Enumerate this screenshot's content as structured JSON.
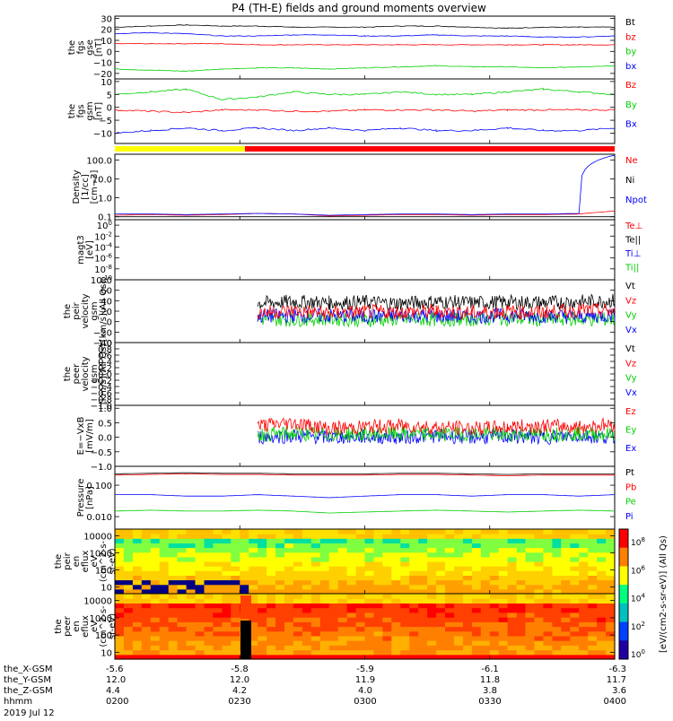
{
  "title": "P4 (TH-E) fields and ground moments overview",
  "date_label": "2019 Jul 12",
  "orbit_rows": [
    {
      "label": "the_X-GSM",
      "values": [
        "-5.6",
        "-5.8",
        "-5.9",
        "-6.1",
        "-6.3"
      ]
    },
    {
      "label": "the_Y-GSM",
      "values": [
        "12.0",
        "12.0",
        "11.9",
        "11.8",
        "11.7"
      ]
    },
    {
      "label": "the_Z-GSM",
      "values": [
        "4.4",
        "4.2",
        "4.0",
        "3.8",
        "3.6"
      ]
    },
    {
      "label": "hhmm",
      "values": [
        "0200",
        "0230",
        "0300",
        "0330",
        "0400"
      ]
    }
  ],
  "colorbar": {
    "label": "[eV/(cm2-s-sr-eV)] (All Qs)",
    "ticks": [
      "10^8",
      "10^6",
      "10^4",
      "10^2",
      "10^0"
    ],
    "colors": [
      "#ff0000",
      "#ff8000",
      "#ffff00",
      "#00ff80",
      "#00c0c0",
      "#0040ff",
      "#2000a0"
    ]
  },
  "colors": {
    "black": "#000000",
    "red": "#ff0000",
    "green": "#00d000",
    "blue": "#0000ff",
    "yellow": "#ffff00"
  },
  "chart_data": [
    {
      "type": "line",
      "ylabel": [
        "the",
        "fgs",
        "gse",
        "[nT]"
      ],
      "ylim": [
        -25,
        32
      ],
      "yticks": [
        "30",
        "20",
        "10",
        "0",
        "−10",
        "−20"
      ],
      "ytick_values": [
        30,
        20,
        10,
        0,
        -10,
        -20
      ],
      "legend": [
        {
          "name": "Bt",
          "color": "#000000"
        },
        {
          "name": "bz",
          "color": "#ff0000"
        },
        {
          "name": "by",
          "color": "#00d000"
        },
        {
          "name": "bx",
          "color": "#0000ff"
        }
      ],
      "series": [
        {
          "name": "Bt",
          "color": "#000000",
          "values": [
            22,
            23,
            24,
            23,
            23,
            22,
            22,
            22,
            23,
            23,
            22,
            21,
            22,
            22,
            22
          ]
        },
        {
          "name": "bz",
          "color": "#ff0000",
          "values": [
            7,
            7,
            7,
            7,
            6,
            6,
            6,
            6,
            6,
            6,
            6,
            6,
            6,
            6,
            6
          ]
        },
        {
          "name": "by",
          "color": "#00d000",
          "values": [
            -16,
            -17,
            -18,
            -16,
            -15,
            -15,
            -16,
            -15,
            -14,
            -13,
            -14,
            -14,
            -15,
            -14,
            -13
          ]
        },
        {
          "name": "bx",
          "color": "#0000ff",
          "values": [
            16,
            17,
            16,
            14,
            14,
            15,
            15,
            14,
            14,
            15,
            14,
            14,
            13,
            13,
            14
          ]
        }
      ]
    },
    {
      "type": "line",
      "ylabel": [
        "the",
        "fgs",
        "gsm",
        "[nT]"
      ],
      "ylim": [
        -14,
        11
      ],
      "yticks": [
        "10",
        "5",
        "0",
        "−5",
        "−10"
      ],
      "ytick_values": [
        10,
        5,
        0,
        -5,
        -10
      ],
      "legend": [
        {
          "name": "Bz",
          "color": "#ff0000"
        },
        {
          "name": "By",
          "color": "#00d000"
        },
        {
          "name": "Bx",
          "color": "#0000ff"
        }
      ],
      "series": [
        {
          "name": "By",
          "color": "#00d000",
          "values": [
            5,
            6,
            7,
            3,
            4,
            6,
            5,
            5,
            6,
            5,
            5,
            6,
            7,
            6,
            5
          ]
        },
        {
          "name": "Bz",
          "color": "#ff0000",
          "values": [
            -1,
            -1.5,
            -2,
            -1,
            -1,
            -1.5,
            -1.5,
            -1,
            -1,
            -1,
            -1.5,
            -1,
            -1,
            -1,
            -1
          ]
        },
        {
          "name": "Bx",
          "color": "#0000ff",
          "values": [
            -10,
            -9,
            -8,
            -9,
            -8,
            -9,
            -8,
            -9,
            -8,
            -9,
            -9,
            -8,
            -9,
            -9,
            -8
          ]
        }
      ]
    },
    {
      "type": "line",
      "ylabel": [
        "Density",
        "[1/cc]",
        "[cm−3]"
      ],
      "ylim": [
        0.07,
        200
      ],
      "log": true,
      "yticks": [
        "100.0",
        "10.0",
        "1.0",
        "0.1"
      ],
      "ytick_values": [
        100,
        10,
        1,
        0.1
      ],
      "legend": [
        {
          "name": "Ne",
          "color": "#ff0000"
        },
        {
          "name": "Ni",
          "color": "#000000"
        },
        {
          "name": "Npot",
          "color": "#0000ff"
        }
      ],
      "series": [
        {
          "name": "Ni",
          "color": "#000000",
          "values": [
            0.1,
            0.1,
            0.1,
            0.1,
            0.1,
            0.1,
            0.1,
            0.1,
            0.1,
            0.1,
            0.1,
            0.1,
            0.1,
            0.1,
            0.1
          ]
        },
        {
          "name": "Ne",
          "color": "#ff0000",
          "values": [
            0.12,
            0.13,
            0.12,
            0.13,
            0.15,
            0.14,
            0.11,
            0.12,
            0.13,
            0.13,
            0.12,
            0.13,
            0.13,
            0.14,
            0.2
          ]
        },
        {
          "name": "Npot",
          "color": "#0000ff",
          "values": [
            0.14,
            0.14,
            0.13,
            0.14,
            0.15,
            0.14,
            0.12,
            0.13,
            0.14,
            0.14,
            0.13,
            0.14,
            0.14,
            0.15,
            180
          ]
        }
      ]
    },
    {
      "type": "line",
      "ylabel": [
        "magt3",
        "[eV]"
      ],
      "ylim": [
        -10,
        1
      ],
      "yticks": [
        "10^0",
        "10^-2",
        "10^-4",
        "10^-6",
        "10^-8",
        "10^-10"
      ],
      "ytick_values": [
        0,
        -2,
        -4,
        -6,
        -8,
        -10
      ],
      "legend": [
        {
          "name": "Te⊥",
          "color": "#ff0000"
        },
        {
          "name": "Te||",
          "color": "#000000"
        },
        {
          "name": "Ti⊥",
          "color": "#0000ff"
        },
        {
          "name": "Ti||",
          "color": "#00d000"
        }
      ],
      "series": []
    },
    {
      "type": "line",
      "ylabel": [
        "the",
        "peir",
        "velocity",
        "gsm",
        "[km/s](All Qs)"
      ],
      "ylim": [
        -40,
        80
      ],
      "yticks": [
        "80",
        "60",
        "40",
        "20",
        "0",
        "−20",
        "−40"
      ],
      "ytick_values": [
        80,
        60,
        40,
        20,
        0,
        -20,
        -40
      ],
      "legend": [
        {
          "name": "Vt",
          "color": "#000000"
        },
        {
          "name": "Vz",
          "color": "#ff0000"
        },
        {
          "name": "Vy",
          "color": "#00d000"
        },
        {
          "name": "Vx",
          "color": "#0000ff"
        }
      ],
      "series": [
        {
          "name": "Vt",
          "color": "#000000",
          "values": [
            null,
            null,
            null,
            null,
            35,
            38,
            36,
            37,
            35,
            38,
            36,
            37,
            36,
            38,
            40
          ]
        },
        {
          "name": "Vy",
          "color": "#00d000",
          "values": [
            null,
            null,
            null,
            null,
            5,
            4,
            6,
            3,
            5,
            4,
            5,
            6,
            4,
            5,
            4
          ]
        },
        {
          "name": "Vx",
          "color": "#0000ff",
          "values": [
            null,
            null,
            null,
            null,
            10,
            12,
            11,
            10,
            12,
            11,
            10,
            12,
            11,
            10,
            12
          ]
        },
        {
          "name": "Vz",
          "color": "#ff0000",
          "values": [
            null,
            null,
            null,
            null,
            18,
            20,
            16,
            19,
            18,
            20,
            17,
            19,
            18,
            22,
            20
          ]
        }
      ]
    },
    {
      "type": "line",
      "ylabel": [
        "the",
        "peer",
        "velocity",
        "gsm",
        "[km/s](All Qs)"
      ],
      "ylim": [
        -1,
        1
      ],
      "yticks": [
        "1.0",
        "0.8",
        "0.6",
        "0.4",
        "0.2",
        "0.0",
        "−0.2",
        "−0.4",
        "−0.6",
        "−0.8",
        "−1.0"
      ],
      "ytick_values": [
        1,
        0.8,
        0.6,
        0.4,
        0.2,
        0,
        -0.2,
        -0.4,
        -0.6,
        -0.8,
        -1
      ],
      "legend": [
        {
          "name": "Vt",
          "color": "#000000"
        },
        {
          "name": "Vz",
          "color": "#ff0000"
        },
        {
          "name": "Vy",
          "color": "#00d000"
        },
        {
          "name": "Vx",
          "color": "#0000ff"
        }
      ],
      "series": []
    },
    {
      "type": "line",
      "ylabel": [
        "E=−VxB",
        "[mV/m]"
      ],
      "ylim": [
        -1,
        1.1
      ],
      "yticks": [
        "1.0",
        "0.5",
        "0.0",
        "−0.5",
        "−1.0"
      ],
      "ytick_values": [
        1,
        0.5,
        0,
        -0.5,
        -1
      ],
      "legend": [
        {
          "name": "Ez",
          "color": "#ff0000"
        },
        {
          "name": "Ey",
          "color": "#00d000"
        },
        {
          "name": "Ex",
          "color": "#0000ff"
        }
      ],
      "series": [
        {
          "name": "Ex",
          "color": "#0000ff",
          "values": [
            null,
            null,
            null,
            null,
            0.0,
            0.05,
            0.0,
            0.02,
            0.0,
            0.05,
            0.0,
            0.02,
            0.0,
            0.05,
            0.0
          ]
        },
        {
          "name": "Ey",
          "color": "#00d000",
          "values": [
            null,
            null,
            null,
            null,
            0.1,
            0.12,
            0.1,
            0.11,
            0.12,
            0.1,
            0.12,
            0.1,
            0.11,
            0.12,
            0.1
          ]
        },
        {
          "name": "Ez",
          "color": "#ff0000",
          "values": [
            null,
            null,
            null,
            null,
            0.4,
            0.5,
            0.3,
            0.35,
            0.4,
            0.35,
            0.3,
            0.35,
            0.4,
            0.35,
            0.45
          ]
        }
      ]
    },
    {
      "type": "line",
      "ylabel": [
        "Pressure",
        "[nPa]"
      ],
      "ylim": [
        0.004,
        0.4
      ],
      "log": true,
      "yticks": [
        "0.100",
        "0.010"
      ],
      "ytick_values": [
        0.1,
        0.01
      ],
      "legend": [
        {
          "name": "Pt",
          "color": "#000000"
        },
        {
          "name": "Pb",
          "color": "#ff0000"
        },
        {
          "name": "Pe",
          "color": "#00d000"
        },
        {
          "name": "Pi",
          "color": "#0000ff"
        }
      ],
      "series": [
        {
          "name": "Pt",
          "color": "#000000",
          "values": [
            0.23,
            0.24,
            0.25,
            0.24,
            0.24,
            0.23,
            0.23,
            0.23,
            0.24,
            0.24,
            0.23,
            0.22,
            0.23,
            0.23,
            0.23
          ]
        },
        {
          "name": "Pb",
          "color": "#ff0000",
          "values": [
            0.21,
            0.22,
            0.23,
            0.22,
            0.22,
            0.21,
            0.21,
            0.21,
            0.22,
            0.22,
            0.21,
            0.2,
            0.21,
            0.21,
            0.21
          ]
        },
        {
          "name": "Pi",
          "color": "#0000ff",
          "values": [
            0.05,
            0.05,
            0.045,
            0.045,
            0.05,
            0.045,
            0.04,
            0.045,
            0.05,
            0.05,
            0.045,
            0.05,
            0.05,
            0.045,
            0.05
          ]
        },
        {
          "name": "Pe",
          "color": "#00d000",
          "values": [
            0.015,
            0.016,
            0.015,
            0.015,
            0.016,
            0.015,
            0.013,
            0.014,
            0.015,
            0.016,
            0.015,
            0.014,
            0.015,
            0.016,
            0.015
          ]
        }
      ]
    },
    {
      "type": "heatmap",
      "ylabel": [
        "the",
        "peir",
        "en",
        "eflux",
        "eV",
        "(cm^2-s-",
        "sr-eV)"
      ],
      "yticks": [
        "10000",
        "1000",
        "100",
        "10"
      ],
      "ytick_values": [
        10000,
        1000,
        100,
        10
      ]
    },
    {
      "type": "heatmap",
      "ylabel": [
        "the",
        "peer",
        "en",
        "eflux",
        "eV",
        "(cm^2-s-",
        "sr-eV)"
      ],
      "yticks": [
        "10000",
        "1000",
        "100",
        "10"
      ],
      "ytick_values": [
        10000,
        1000,
        100,
        10
      ]
    }
  ]
}
